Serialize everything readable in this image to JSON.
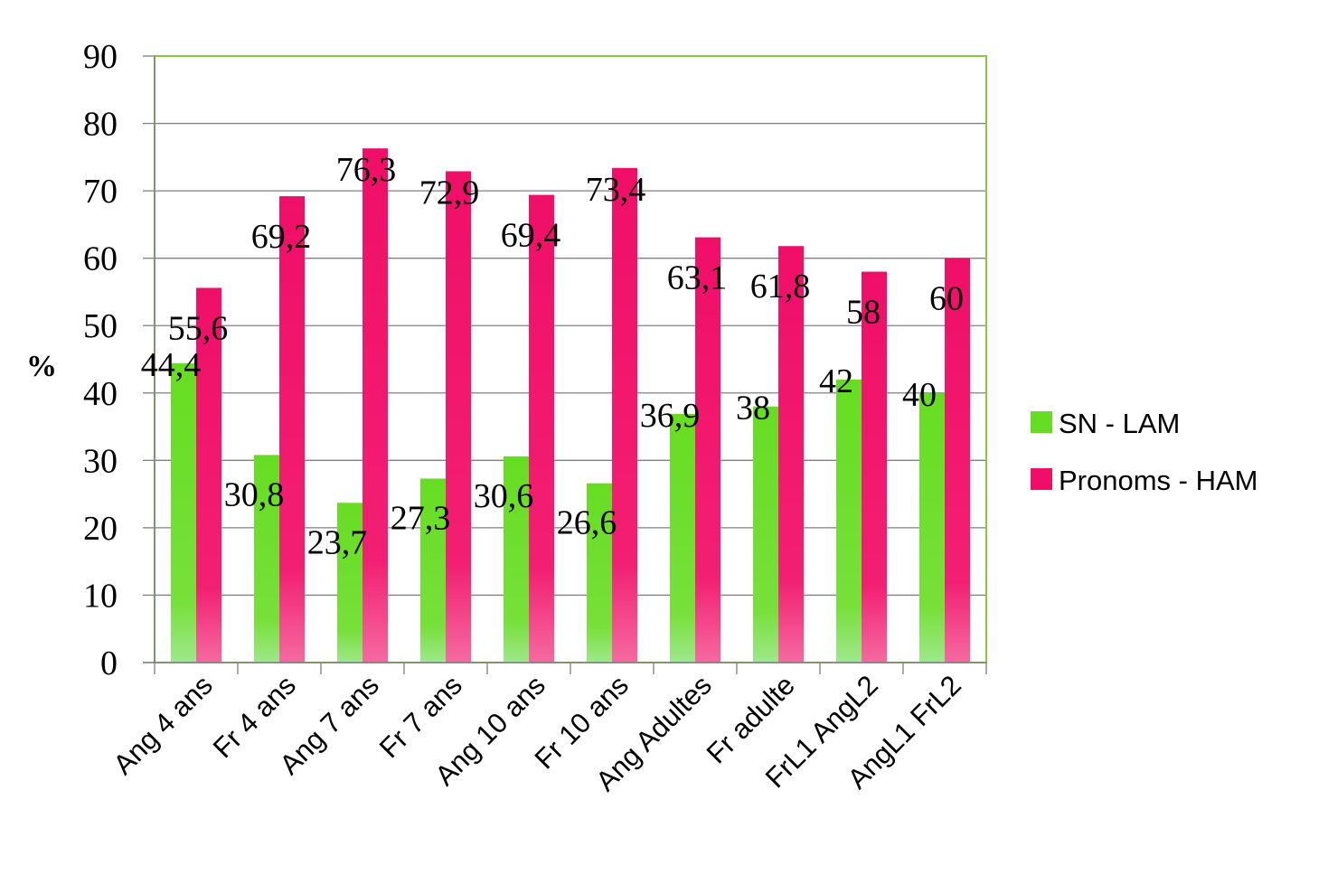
{
  "chart_data": {
    "type": "bar",
    "title": "",
    "xlabel": "",
    "ylabel": "%",
    "ylim": [
      0,
      90
    ],
    "yticks": [
      "0",
      "10",
      "20",
      "30",
      "40",
      "50",
      "60",
      "70",
      "80",
      "90"
    ],
    "grid": true,
    "legend_position": "right",
    "categories": [
      "Ang 4 ans",
      "Fr 4 ans",
      "Ang 7 ans",
      "Fr 7 ans",
      "Ang 10 ans",
      "Fr 10 ans",
      "Ang Adultes",
      "Fr adulte",
      "FrL1 AngL2",
      "AngL1 FrL2"
    ],
    "series": [
      {
        "name": "SN - LAM",
        "color": "#66dd22",
        "values": [
          44.4,
          30.8,
          23.7,
          27.3,
          30.6,
          26.6,
          36.9,
          38,
          42,
          40
        ],
        "labels": [
          "44,4",
          "30,8",
          "23,7",
          "27,3",
          "30,6",
          "26,6",
          "36,9",
          "38",
          "42",
          "40"
        ]
      },
      {
        "name": "Pronoms - HAM",
        "color": "#f00f68",
        "values": [
          55.6,
          69.2,
          76.3,
          72.9,
          69.4,
          73.4,
          63.1,
          61.8,
          58,
          60
        ],
        "labels": [
          "55,6",
          "69,2",
          "76,3",
          "72,9",
          "69,4",
          "73,4",
          "63,1",
          "61,8",
          "58",
          "60"
        ]
      }
    ]
  }
}
